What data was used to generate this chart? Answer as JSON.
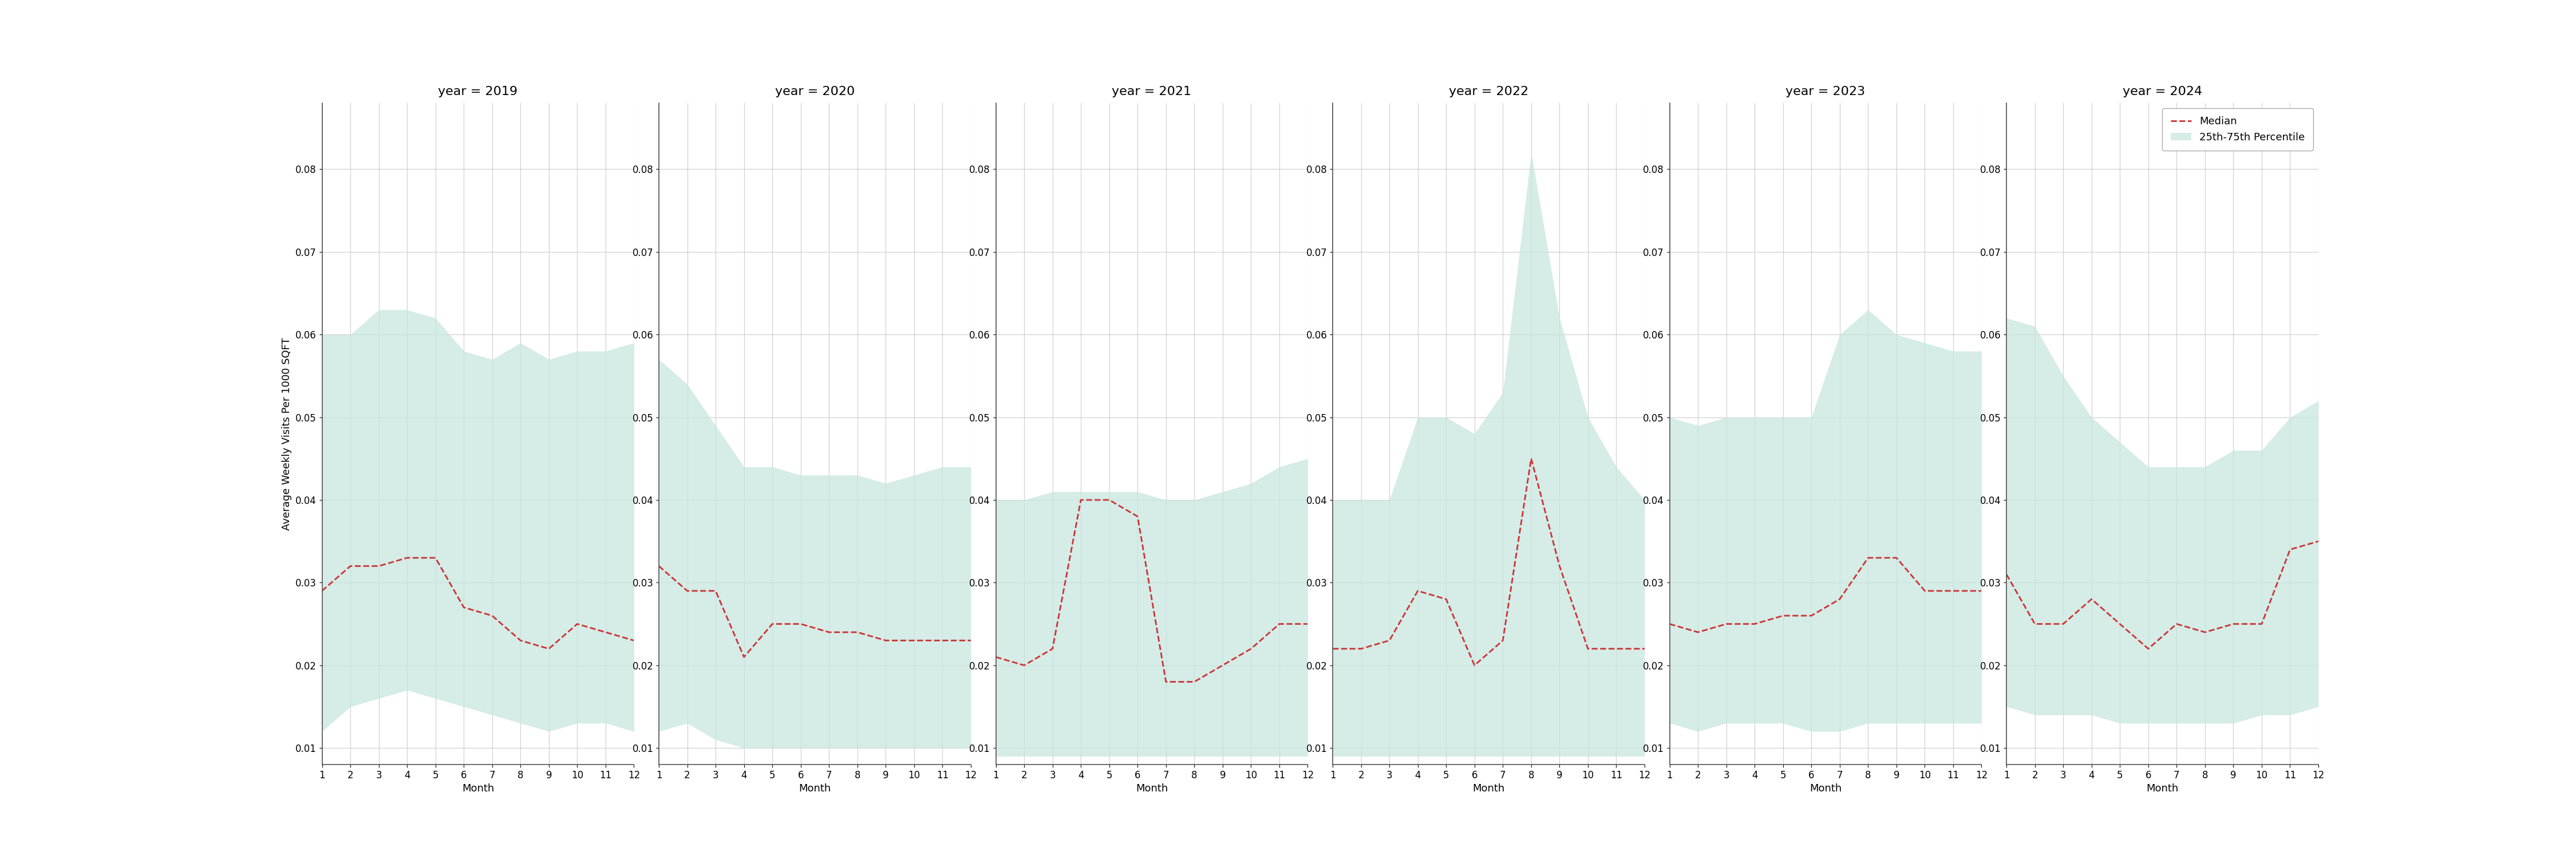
{
  "years": [
    2019,
    2020,
    2021,
    2022,
    2023,
    2024
  ],
  "months": [
    1,
    2,
    3,
    4,
    5,
    6,
    7,
    8,
    9,
    10,
    11,
    12
  ],
  "median": {
    "2019": [
      0.029,
      0.032,
      0.032,
      0.033,
      0.033,
      0.027,
      0.026,
      0.023,
      0.022,
      0.025,
      0.024,
      0.023
    ],
    "2020": [
      0.032,
      0.029,
      0.029,
      0.021,
      0.025,
      0.025,
      0.024,
      0.024,
      0.023,
      0.023,
      0.023,
      0.023
    ],
    "2021": [
      0.021,
      0.02,
      0.022,
      0.04,
      0.04,
      0.038,
      0.018,
      0.018,
      0.02,
      0.022,
      0.025,
      0.025
    ],
    "2022": [
      0.022,
      0.022,
      0.023,
      0.029,
      0.028,
      0.02,
      0.023,
      0.045,
      0.032,
      0.022,
      0.022,
      0.022
    ],
    "2023": [
      0.025,
      0.024,
      0.025,
      0.025,
      0.026,
      0.026,
      0.028,
      0.033,
      0.033,
      0.029,
      0.029,
      0.029
    ],
    "2024": [
      0.031,
      0.025,
      0.025,
      0.028,
      0.025,
      0.022,
      0.025,
      0.024,
      0.025,
      0.025,
      0.034,
      0.035
    ]
  },
  "p25": {
    "2019": [
      0.012,
      0.015,
      0.016,
      0.017,
      0.016,
      0.015,
      0.014,
      0.013,
      0.012,
      0.013,
      0.013,
      0.012
    ],
    "2020": [
      0.012,
      0.013,
      0.011,
      0.01,
      0.01,
      0.01,
      0.01,
      0.01,
      0.01,
      0.01,
      0.01,
      0.01
    ],
    "2021": [
      0.009,
      0.009,
      0.009,
      0.009,
      0.009,
      0.009,
      0.009,
      0.009,
      0.009,
      0.009,
      0.009,
      0.009
    ],
    "2022": [
      0.009,
      0.009,
      0.009,
      0.009,
      0.009,
      0.009,
      0.009,
      0.009,
      0.009,
      0.009,
      0.009,
      0.009
    ],
    "2023": [
      0.013,
      0.012,
      0.013,
      0.013,
      0.013,
      0.012,
      0.012,
      0.013,
      0.013,
      0.013,
      0.013,
      0.013
    ],
    "2024": [
      0.015,
      0.014,
      0.014,
      0.014,
      0.013,
      0.013,
      0.013,
      0.013,
      0.013,
      0.014,
      0.014,
      0.015
    ]
  },
  "p75": {
    "2019": [
      0.06,
      0.06,
      0.063,
      0.063,
      0.062,
      0.058,
      0.057,
      0.059,
      0.057,
      0.058,
      0.058,
      0.059
    ],
    "2020": [
      0.057,
      0.054,
      0.049,
      0.044,
      0.044,
      0.043,
      0.043,
      0.043,
      0.042,
      0.043,
      0.044,
      0.044
    ],
    "2021": [
      0.04,
      0.04,
      0.041,
      0.041,
      0.041,
      0.041,
      0.04,
      0.04,
      0.041,
      0.042,
      0.044,
      0.045
    ],
    "2022": [
      0.04,
      0.04,
      0.04,
      0.05,
      0.05,
      0.048,
      0.053,
      0.082,
      0.062,
      0.05,
      0.044,
      0.04
    ],
    "2023": [
      0.05,
      0.049,
      0.05,
      0.05,
      0.05,
      0.05,
      0.06,
      0.063,
      0.06,
      0.059,
      0.058,
      0.058
    ],
    "2024": [
      0.062,
      0.061,
      0.055,
      0.05,
      0.047,
      0.044,
      0.044,
      0.044,
      0.046,
      0.046,
      0.05,
      0.052
    ]
  },
  "ylim": [
    0.008,
    0.088
  ],
  "yticks": [
    0.01,
    0.02,
    0.03,
    0.04,
    0.05,
    0.06,
    0.07,
    0.08
  ],
  "ylabel": "Average Weekly Visits Per 1000 SQFT",
  "xlabel": "Month",
  "fill_color": "#c8e6e0",
  "fill_alpha": 0.75,
  "line_color": "#cc3333",
  "line_style": "--",
  "line_width": 2.0,
  "background_color": "#ffffff",
  "grid_color": "#cccccc",
  "title_fontsize": 16,
  "label_fontsize": 13,
  "tick_fontsize": 12,
  "legend_fontsize": 13
}
